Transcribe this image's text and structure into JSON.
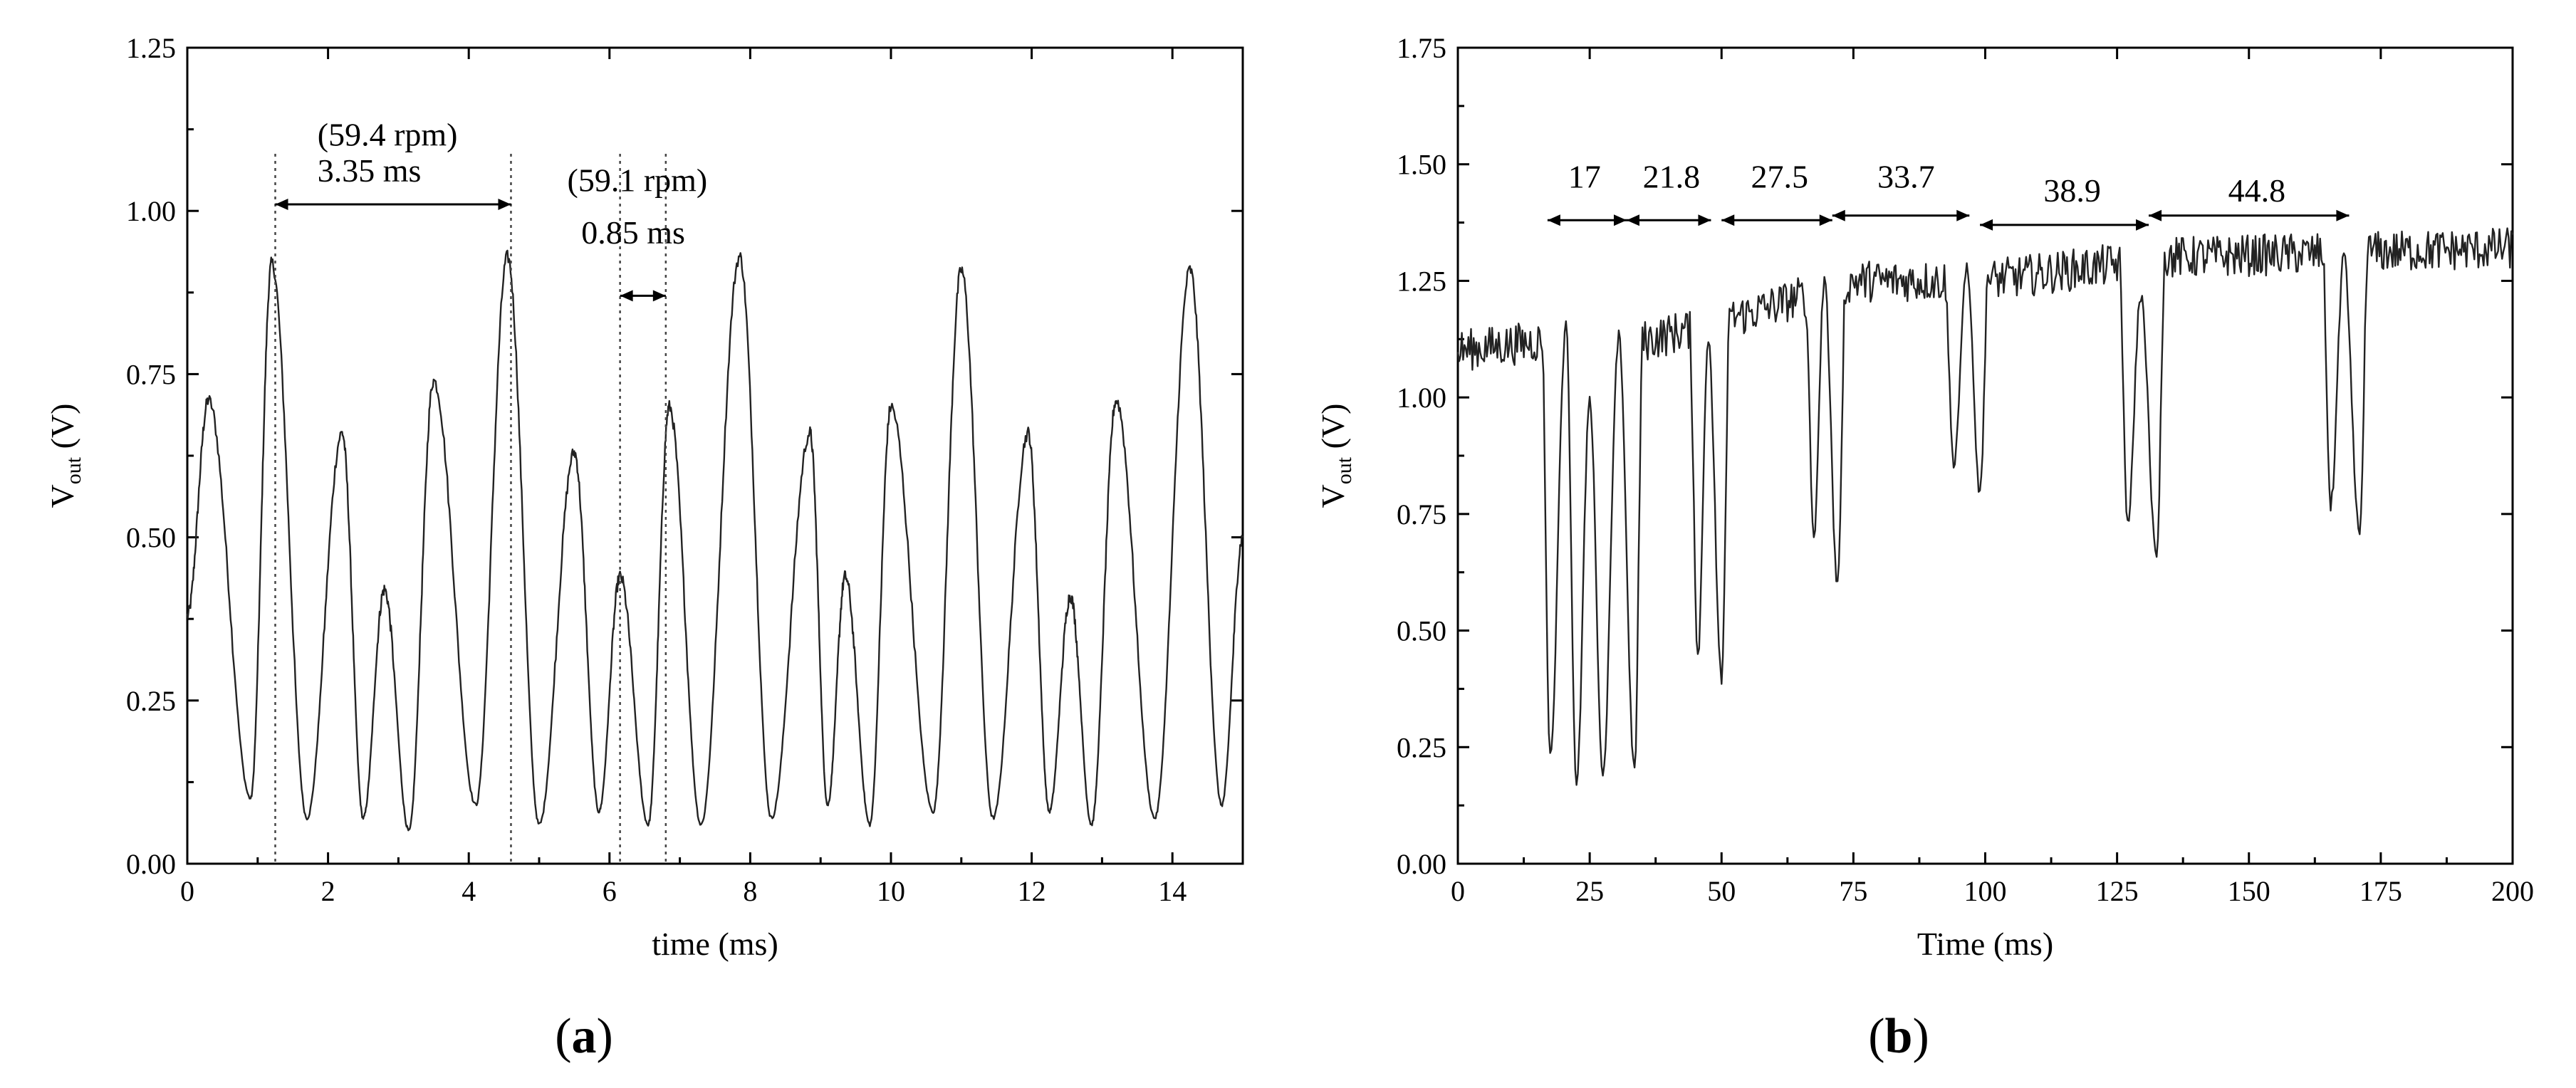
{
  "chart_data": [
    {
      "panel": "a",
      "panel_label": "a",
      "type": "line",
      "xlabel": "time (ms)",
      "ylabel_main": "V",
      "ylabel_sub": "out",
      "ylabel_unit": " (V)",
      "xlim": [
        0,
        15
      ],
      "ylim": [
        0,
        1.25
      ],
      "xticks": [
        0,
        2,
        4,
        6,
        8,
        10,
        12,
        14
      ],
      "xtick_labels": [
        "0",
        "2",
        "4",
        "6",
        "8",
        "10",
        "12",
        "14"
      ],
      "yticks": [
        0,
        0.25,
        0.5,
        0.75,
        1.0,
        1.25
      ],
      "ytick_labels": [
        "0.00",
        "0.25",
        "0.50",
        "0.75",
        "1.00",
        "1.25"
      ],
      "grid": false,
      "peaks": [
        {
          "t": 0.3,
          "v": 0.71
        },
        {
          "t": 0.9,
          "v": 0.1
        },
        {
          "t": 1.2,
          "v": 0.92
        },
        {
          "t": 1.7,
          "v": 0.07
        },
        {
          "t": 2.2,
          "v": 0.66
        },
        {
          "t": 2.5,
          "v": 0.07
        },
        {
          "t": 2.8,
          "v": 0.42
        },
        {
          "t": 3.15,
          "v": 0.05
        },
        {
          "t": 3.5,
          "v": 0.74
        },
        {
          "t": 4.1,
          "v": 0.09
        },
        {
          "t": 4.55,
          "v": 0.93
        },
        {
          "t": 5.0,
          "v": 0.06
        },
        {
          "t": 5.5,
          "v": 0.63
        },
        {
          "t": 5.85,
          "v": 0.08
        },
        {
          "t": 6.15,
          "v": 0.44
        },
        {
          "t": 6.55,
          "v": 0.06
        },
        {
          "t": 6.85,
          "v": 0.7
        },
        {
          "t": 7.3,
          "v": 0.06
        },
        {
          "t": 7.85,
          "v": 0.93
        },
        {
          "t": 8.3,
          "v": 0.07
        },
        {
          "t": 8.85,
          "v": 0.66
        },
        {
          "t": 9.1,
          "v": 0.09
        },
        {
          "t": 9.35,
          "v": 0.44
        },
        {
          "t": 9.7,
          "v": 0.06
        },
        {
          "t": 10.0,
          "v": 0.7
        },
        {
          "t": 10.6,
          "v": 0.08
        },
        {
          "t": 11.0,
          "v": 0.91
        },
        {
          "t": 11.45,
          "v": 0.07
        },
        {
          "t": 11.95,
          "v": 0.66
        },
        {
          "t": 12.25,
          "v": 0.08
        },
        {
          "t": 12.55,
          "v": 0.41
        },
        {
          "t": 12.85,
          "v": 0.06
        },
        {
          "t": 13.2,
          "v": 0.71
        },
        {
          "t": 13.75,
          "v": 0.07
        },
        {
          "t": 14.25,
          "v": 0.91
        },
        {
          "t": 14.7,
          "v": 0.09
        },
        {
          "t": 15.0,
          "v": 0.5
        }
      ],
      "guides": [
        1.25,
        4.6,
        6.15,
        6.8
      ],
      "annotations": [
        {
          "text": "(59.4 rpm)",
          "t": 1.85,
          "v": 1.1
        },
        {
          "text": "3.35 ms",
          "t": 1.85,
          "v": 1.045
        },
        {
          "text": "(59.1 rpm)",
          "t": 5.4,
          "v": 1.03
        },
        {
          "text": "0.85 ms",
          "t": 5.6,
          "v": 0.95
        }
      ],
      "spans": [
        {
          "t0": 1.25,
          "t1": 4.6,
          "v": 1.01
        },
        {
          "t0": 6.15,
          "t1": 6.8,
          "v": 0.87
        }
      ]
    },
    {
      "panel": "b",
      "panel_label": "b",
      "type": "line",
      "xlabel": "Time (ms)",
      "ylabel_main": "V",
      "ylabel_sub": "out",
      "ylabel_unit": " (V)",
      "xlim": [
        0,
        200
      ],
      "ylim": [
        0,
        1.75
      ],
      "xticks": [
        0,
        25,
        50,
        75,
        100,
        125,
        150,
        175,
        200
      ],
      "xtick_labels": [
        "0",
        "25",
        "50",
        "75",
        "100",
        "125",
        "150",
        "175",
        "200"
      ],
      "yticks": [
        0,
        0.25,
        0.5,
        0.75,
        1.0,
        1.25,
        1.5,
        1.75
      ],
      "ytick_labels": [
        "0.00",
        "0.25",
        "0.50",
        "0.75",
        "1.00",
        "1.25",
        "1.50",
        "1.75"
      ],
      "grid": false,
      "baseline": [
        {
          "t": 0,
          "v": 1.1
        },
        {
          "t": 15,
          "v": 1.12
        },
        {
          "t": 35,
          "v": 1.12
        },
        {
          "t": 55,
          "v": 1.18
        },
        {
          "t": 75,
          "v": 1.25
        },
        {
          "t": 100,
          "v": 1.25
        },
        {
          "t": 135,
          "v": 1.3
        },
        {
          "t": 200,
          "v": 1.32
        }
      ],
      "dips": [
        {
          "t": 17.5,
          "v": 0.23
        },
        {
          "t": 20.5,
          "v": 1.15
        },
        {
          "t": 22.5,
          "v": 0.17
        },
        {
          "t": 25.0,
          "v": 1.0
        },
        {
          "t": 27.5,
          "v": 0.19
        },
        {
          "t": 30.5,
          "v": 1.13
        },
        {
          "t": 33.5,
          "v": 0.2
        },
        {
          "t": 45.5,
          "v": 0.45
        },
        {
          "t": 47.5,
          "v": 1.12
        },
        {
          "t": 50.0,
          "v": 0.4
        },
        {
          "t": 67.5,
          "v": 0.7
        },
        {
          "t": 69.5,
          "v": 1.25
        },
        {
          "t": 72.0,
          "v": 0.6
        },
        {
          "t": 94.0,
          "v": 0.85
        },
        {
          "t": 96.5,
          "v": 1.28
        },
        {
          "t": 99.0,
          "v": 0.8
        },
        {
          "t": 127.0,
          "v": 0.73
        },
        {
          "t": 129.5,
          "v": 1.22
        },
        {
          "t": 132.5,
          "v": 0.65
        },
        {
          "t": 165.5,
          "v": 0.77
        },
        {
          "t": 168.0,
          "v": 1.3
        },
        {
          "t": 171.0,
          "v": 0.7
        }
      ],
      "annotations": [
        {
          "text": "17",
          "t": 24.0,
          "v": 1.45
        },
        {
          "text": "21.8",
          "t": 40.5,
          "v": 1.45
        },
        {
          "text": "27.5",
          "t": 61.0,
          "v": 1.45
        },
        {
          "text": "33.7",
          "t": 85.0,
          "v": 1.45
        },
        {
          "text": "38.9",
          "t": 116.5,
          "v": 1.42
        },
        {
          "text": "44.8",
          "t": 151.5,
          "v": 1.42
        }
      ],
      "spans": [
        {
          "t0": 17.0,
          "t1": 32.0,
          "v": 1.38
        },
        {
          "t0": 32.0,
          "t1": 48.0,
          "v": 1.38
        },
        {
          "t0": 50.0,
          "t1": 71.0,
          "v": 1.38
        },
        {
          "t0": 71.0,
          "t1": 97.0,
          "v": 1.39
        },
        {
          "t0": 99.0,
          "t1": 131.0,
          "v": 1.37
        },
        {
          "t0": 131.0,
          "t1": 169.0,
          "v": 1.39
        }
      ]
    }
  ]
}
